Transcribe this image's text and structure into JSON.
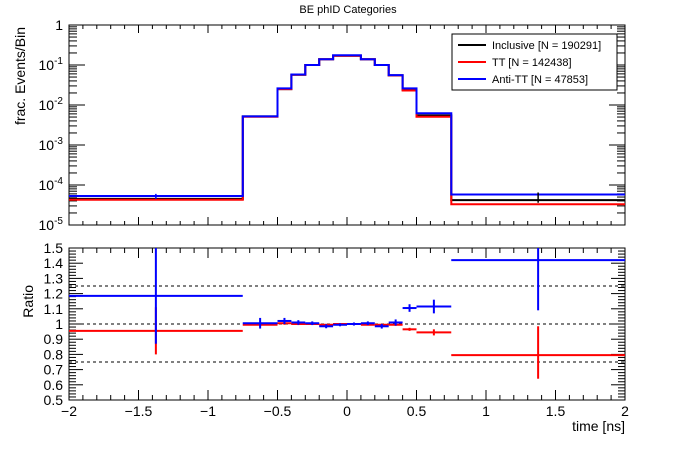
{
  "chart_data": [
    {
      "type": "line",
      "title": "BE phID Categories",
      "xlabel": "",
      "ylabel": "frac. Events/Bin",
      "xlim": [
        -2,
        2
      ],
      "ylim": [
        1e-05,
        1
      ],
      "y_scale": "log",
      "y_ticks": [
        {
          "base": "1",
          "exp": ""
        },
        {
          "base": "10",
          "exp": "-1"
        },
        {
          "base": "10",
          "exp": "-2"
        },
        {
          "base": "10",
          "exp": "-3"
        },
        {
          "base": "10",
          "exp": "-4"
        },
        {
          "base": "10",
          "exp": "-5"
        }
      ],
      "legend": {
        "placement": "top-right",
        "entries": [
          "Inclusive [N = 190291]",
          "TT [N = 142438]",
          "Anti-TT [N = 47853]"
        ]
      },
      "series": [
        {
          "name": "Inclusive [N = 190291]",
          "color": "#000000",
          "bins": [
            {
              "lo": -2.0,
              "hi": -0.75,
              "y": 4.5e-05
            },
            {
              "lo": -0.75,
              "hi": -0.5,
              "y": 0.0052
            },
            {
              "lo": -0.5,
              "hi": -0.4,
              "y": 0.025
            },
            {
              "lo": -0.4,
              "hi": -0.3,
              "y": 0.057
            },
            {
              "lo": -0.3,
              "hi": -0.2,
              "y": 0.1
            },
            {
              "lo": -0.2,
              "hi": -0.1,
              "y": 0.14
            },
            {
              "lo": -0.1,
              "hi": 0.1,
              "y": 0.17
            },
            {
              "lo": 0.1,
              "hi": 0.2,
              "y": 0.14
            },
            {
              "lo": 0.2,
              "hi": 0.3,
              "y": 0.1
            },
            {
              "lo": 0.3,
              "hi": 0.4,
              "y": 0.055
            },
            {
              "lo": 0.4,
              "hi": 0.5,
              "y": 0.024
            },
            {
              "lo": 0.5,
              "hi": 0.75,
              "y": 0.0055
            },
            {
              "lo": 0.75,
              "hi": 2.0,
              "y": 4.2e-05
            }
          ]
        },
        {
          "name": "TT [N = 142438]",
          "color": "#ff0000",
          "bins": [
            {
              "lo": -2.0,
              "hi": -0.75,
              "y": 4.3e-05
            },
            {
              "lo": -0.75,
              "hi": -0.5,
              "y": 0.0051
            },
            {
              "lo": -0.5,
              "hi": -0.4,
              "y": 0.025
            },
            {
              "lo": -0.4,
              "hi": -0.3,
              "y": 0.057
            },
            {
              "lo": -0.3,
              "hi": -0.2,
              "y": 0.1
            },
            {
              "lo": -0.2,
              "hi": -0.1,
              "y": 0.14
            },
            {
              "lo": -0.1,
              "hi": 0.1,
              "y": 0.17
            },
            {
              "lo": 0.1,
              "hi": 0.2,
              "y": 0.14
            },
            {
              "lo": 0.2,
              "hi": 0.3,
              "y": 0.1
            },
            {
              "lo": 0.3,
              "hi": 0.4,
              "y": 0.055
            },
            {
              "lo": 0.4,
              "hi": 0.5,
              "y": 0.023
            },
            {
              "lo": 0.5,
              "hi": 0.75,
              "y": 0.0051
            },
            {
              "lo": 0.75,
              "hi": 2.0,
              "y": 3.3e-05
            }
          ]
        },
        {
          "name": "Anti-TT [N = 47853]",
          "color": "#0000ff",
          "bins": [
            {
              "lo": -2.0,
              "hi": -0.75,
              "y": 5.3e-05
            },
            {
              "lo": -0.75,
              "hi": -0.5,
              "y": 0.0052
            },
            {
              "lo": -0.5,
              "hi": -0.4,
              "y": 0.026
            },
            {
              "lo": -0.4,
              "hi": -0.3,
              "y": 0.058
            },
            {
              "lo": -0.3,
              "hi": -0.2,
              "y": 0.1
            },
            {
              "lo": -0.2,
              "hi": -0.1,
              "y": 0.14
            },
            {
              "lo": -0.1,
              "hi": 0.1,
              "y": 0.175
            },
            {
              "lo": 0.1,
              "hi": 0.2,
              "y": 0.14
            },
            {
              "lo": 0.2,
              "hi": 0.3,
              "y": 0.1
            },
            {
              "lo": 0.3,
              "hi": 0.4,
              "y": 0.056
            },
            {
              "lo": 0.4,
              "hi": 0.5,
              "y": 0.026
            },
            {
              "lo": 0.5,
              "hi": 0.75,
              "y": 0.0062
            },
            {
              "lo": 0.75,
              "hi": 2.0,
              "y": 5.8e-05
            }
          ]
        }
      ],
      "error_points": [
        {
          "x": -1.375,
          "y": 5.2e-05,
          "lo": 4.5e-05,
          "hi": 6e-05,
          "color": "#0000ff"
        },
        {
          "x": 1.375,
          "y": 5e-05,
          "lo": 3.6e-05,
          "hi": 6.5e-05,
          "color": "#000000"
        }
      ]
    },
    {
      "type": "scatter",
      "title": "",
      "xlabel": "time [ns]",
      "ylabel": "Ratio",
      "xlim": [
        -2,
        2
      ],
      "ylim": [
        0.5,
        1.5
      ],
      "x_ticks": [
        -2,
        -1.5,
        -1,
        -0.5,
        0,
        0.5,
        1,
        1.5,
        2
      ],
      "x_tick_labels": [
        "−2",
        "−1.5",
        "−1",
        "−0.5",
        "0",
        "0.5",
        "1",
        "1.5",
        "2"
      ],
      "y_ticks": [
        0.5,
        0.6,
        0.7,
        0.8,
        0.9,
        1,
        1.1,
        1.2,
        1.3,
        1.4,
        1.5
      ],
      "y_tick_labels": [
        "0.5",
        "0.6",
        "0.7",
        "0.8",
        "0.9",
        "1",
        "1.1",
        "1.2",
        "1.3",
        "1.4",
        "1.5"
      ],
      "reference_lines": [
        0.75,
        1.0,
        1.25
      ],
      "series": [
        {
          "name": "",
          "color": "#ff0000",
          "points": [
            {
              "x": -1.375,
              "xlo": -2.0,
              "xhi": -0.75,
              "y": 0.955,
              "ylo": 0.8,
              "yhi": 1.11
            },
            {
              "x": -0.625,
              "xlo": -0.75,
              "xhi": -0.5,
              "y": 0.995,
              "ylo": 0.985,
              "yhi": 1.005
            },
            {
              "x": -0.45,
              "xlo": -0.5,
              "xhi": -0.4,
              "y": 1.005,
              "ylo": 0.995,
              "yhi": 1.015
            },
            {
              "x": -0.35,
              "xlo": -0.4,
              "xhi": -0.3,
              "y": 1.0,
              "ylo": 0.993,
              "yhi": 1.007
            },
            {
              "x": -0.25,
              "xlo": -0.3,
              "xhi": -0.2,
              "y": 1.0,
              "ylo": 0.995,
              "yhi": 1.005
            },
            {
              "x": -0.15,
              "xlo": -0.2,
              "xhi": -0.1,
              "y": 0.995,
              "ylo": 0.99,
              "yhi": 1.0
            },
            {
              "x": -0.05,
              "xlo": -0.1,
              "xhi": 0.0,
              "y": 1.0,
              "ylo": 0.996,
              "yhi": 1.004
            },
            {
              "x": 0.05,
              "xlo": 0.0,
              "xhi": 0.1,
              "y": 1.0,
              "ylo": 0.996,
              "yhi": 1.004
            },
            {
              "x": 0.15,
              "xlo": 0.1,
              "xhi": 0.2,
              "y": 0.995,
              "ylo": 0.99,
              "yhi": 1.0
            },
            {
              "x": 0.25,
              "xlo": 0.2,
              "xhi": 0.3,
              "y": 0.995,
              "ylo": 0.989,
              "yhi": 1.001
            },
            {
              "x": 0.35,
              "xlo": 0.3,
              "xhi": 0.4,
              "y": 0.995,
              "ylo": 0.988,
              "yhi": 1.002
            },
            {
              "x": 0.45,
              "xlo": 0.4,
              "xhi": 0.5,
              "y": 0.965,
              "ylo": 0.955,
              "yhi": 0.975
            },
            {
              "x": 0.625,
              "xlo": 0.5,
              "xhi": 0.75,
              "y": 0.945,
              "ylo": 0.925,
              "yhi": 0.965
            },
            {
              "x": 1.375,
              "xlo": 0.75,
              "xhi": 2.0,
              "y": 0.795,
              "ylo": 0.64,
              "yhi": 0.985
            }
          ]
        },
        {
          "name": "",
          "color": "#0000ff",
          "points": [
            {
              "x": -1.375,
              "xlo": -2.0,
              "xhi": -0.75,
              "y": 1.185,
              "ylo": 0.87,
              "yhi": 1.5
            },
            {
              "x": -0.625,
              "xlo": -0.75,
              "xhi": -0.5,
              "y": 1.005,
              "ylo": 0.97,
              "yhi": 1.04
            },
            {
              "x": -0.45,
              "xlo": -0.5,
              "xhi": -0.4,
              "y": 1.02,
              "ylo": 1.0,
              "yhi": 1.04
            },
            {
              "x": -0.35,
              "xlo": -0.4,
              "xhi": -0.3,
              "y": 1.01,
              "ylo": 0.995,
              "yhi": 1.025
            },
            {
              "x": -0.25,
              "xlo": -0.3,
              "xhi": -0.2,
              "y": 1.005,
              "ylo": 0.993,
              "yhi": 1.017
            },
            {
              "x": -0.15,
              "xlo": -0.2,
              "xhi": -0.1,
              "y": 0.985,
              "ylo": 0.972,
              "yhi": 0.998
            },
            {
              "x": -0.05,
              "xlo": -0.1,
              "xhi": 0.0,
              "y": 0.995,
              "ylo": 0.985,
              "yhi": 1.005
            },
            {
              "x": 0.05,
              "xlo": 0.0,
              "xhi": 0.1,
              "y": 1.0,
              "ylo": 0.99,
              "yhi": 1.01
            },
            {
              "x": 0.15,
              "xlo": 0.1,
              "xhi": 0.2,
              "y": 1.005,
              "ylo": 0.993,
              "yhi": 1.017
            },
            {
              "x": 0.25,
              "xlo": 0.2,
              "xhi": 0.3,
              "y": 0.985,
              "ylo": 0.97,
              "yhi": 1.0
            },
            {
              "x": 0.35,
              "xlo": 0.3,
              "xhi": 0.4,
              "y": 1.01,
              "ylo": 0.99,
              "yhi": 1.03
            },
            {
              "x": 0.45,
              "xlo": 0.4,
              "xhi": 0.5,
              "y": 1.105,
              "ylo": 1.08,
              "yhi": 1.13
            },
            {
              "x": 0.625,
              "xlo": 0.5,
              "xhi": 0.75,
              "y": 1.115,
              "ylo": 1.07,
              "yhi": 1.16
            },
            {
              "x": 1.375,
              "xlo": 0.75,
              "xhi": 2.0,
              "y": 1.42,
              "ylo": 1.09,
              "yhi": 1.5
            }
          ]
        }
      ]
    }
  ]
}
